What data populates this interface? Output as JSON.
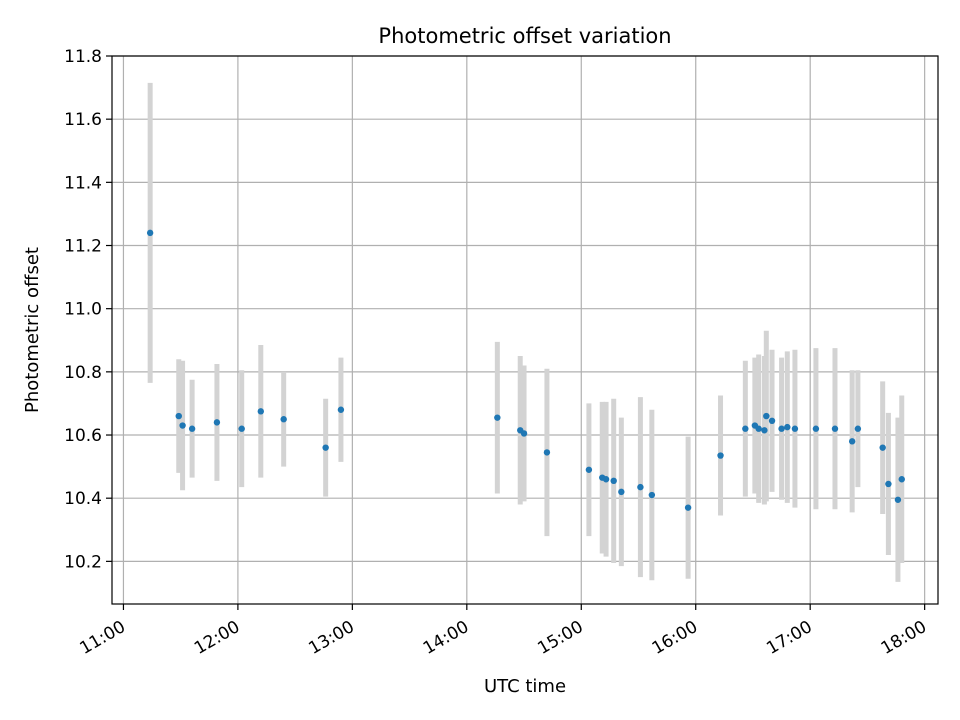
{
  "chart_data": {
    "type": "scatter",
    "title": "Photometric offset variation",
    "xlabel": "UTC time",
    "ylabel": "Photometric offset",
    "xlim": [
      "10:54",
      "18:07"
    ],
    "ylim": [
      10.065,
      11.8
    ],
    "x_ticks": [
      "11:00",
      "12:00",
      "13:00",
      "14:00",
      "15:00",
      "16:00",
      "17:00",
      "18:00"
    ],
    "y_ticks": [
      "10.2",
      "10.4",
      "10.6",
      "10.8",
      "11.0",
      "11.2",
      "11.4",
      "11.6",
      "11.8"
    ],
    "grid": true,
    "colors": {
      "points": "#1f77b4",
      "errorbars": "#d3d3d3",
      "grid": "#b0b0b0"
    },
    "series": [
      {
        "points": [
          {
            "x": "11:14",
            "y": 11.24,
            "err": 0.475
          },
          {
            "x": "11:29",
            "y": 10.66,
            "err": 0.18
          },
          {
            "x": "11:31",
            "y": 10.63,
            "err": 0.205
          },
          {
            "x": "11:36",
            "y": 10.62,
            "err": 0.155
          },
          {
            "x": "11:49",
            "y": 10.64,
            "err": 0.185
          },
          {
            "x": "12:02",
            "y": 10.62,
            "err": 0.185
          },
          {
            "x": "12:12",
            "y": 10.675,
            "err": 0.21
          },
          {
            "x": "12:24",
            "y": 10.65,
            "err": 0.15
          },
          {
            "x": "12:46",
            "y": 10.56,
            "err": 0.155
          },
          {
            "x": "12:54",
            "y": 10.68,
            "err": 0.165
          },
          {
            "x": "14:16",
            "y": 10.655,
            "err": 0.24
          },
          {
            "x": "14:28",
            "y": 10.615,
            "err": 0.235
          },
          {
            "x": "14:30",
            "y": 10.605,
            "err": 0.215
          },
          {
            "x": "14:42",
            "y": 10.545,
            "err": 0.265
          },
          {
            "x": "15:04",
            "y": 10.49,
            "err": 0.21
          },
          {
            "x": "15:11",
            "y": 10.465,
            "err": 0.24
          },
          {
            "x": "15:13",
            "y": 10.46,
            "err": 0.245
          },
          {
            "x": "15:17",
            "y": 10.455,
            "err": 0.26
          },
          {
            "x": "15:21",
            "y": 10.42,
            "err": 0.235
          },
          {
            "x": "15:31",
            "y": 10.435,
            "err": 0.285
          },
          {
            "x": "15:37",
            "y": 10.41,
            "err": 0.27
          },
          {
            "x": "15:56",
            "y": 10.37,
            "err": 0.225
          },
          {
            "x": "16:13",
            "y": 10.535,
            "err": 0.19
          },
          {
            "x": "16:26",
            "y": 10.62,
            "err": 0.215
          },
          {
            "x": "16:31",
            "y": 10.63,
            "err": 0.215
          },
          {
            "x": "16:33",
            "y": 10.62,
            "err": 0.235
          },
          {
            "x": "16:36",
            "y": 10.615,
            "err": 0.235
          },
          {
            "x": "16:37",
            "y": 10.66,
            "err": 0.27
          },
          {
            "x": "16:40",
            "y": 10.645,
            "err": 0.225
          },
          {
            "x": "16:45",
            "y": 10.62,
            "err": 0.225
          },
          {
            "x": "16:48",
            "y": 10.625,
            "err": 0.24
          },
          {
            "x": "16:52",
            "y": 10.62,
            "err": 0.25
          },
          {
            "x": "17:03",
            "y": 10.62,
            "err": 0.255
          },
          {
            "x": "17:13",
            "y": 10.62,
            "err": 0.255
          },
          {
            "x": "17:22",
            "y": 10.58,
            "err": 0.225
          },
          {
            "x": "17:25",
            "y": 10.62,
            "err": 0.185
          },
          {
            "x": "17:38",
            "y": 10.56,
            "err": 0.21
          },
          {
            "x": "17:41",
            "y": 10.445,
            "err": 0.225
          },
          {
            "x": "17:46",
            "y": 10.395,
            "err": 0.26
          },
          {
            "x": "17:48",
            "y": 10.46,
            "err": 0.265
          }
        ]
      }
    ]
  }
}
